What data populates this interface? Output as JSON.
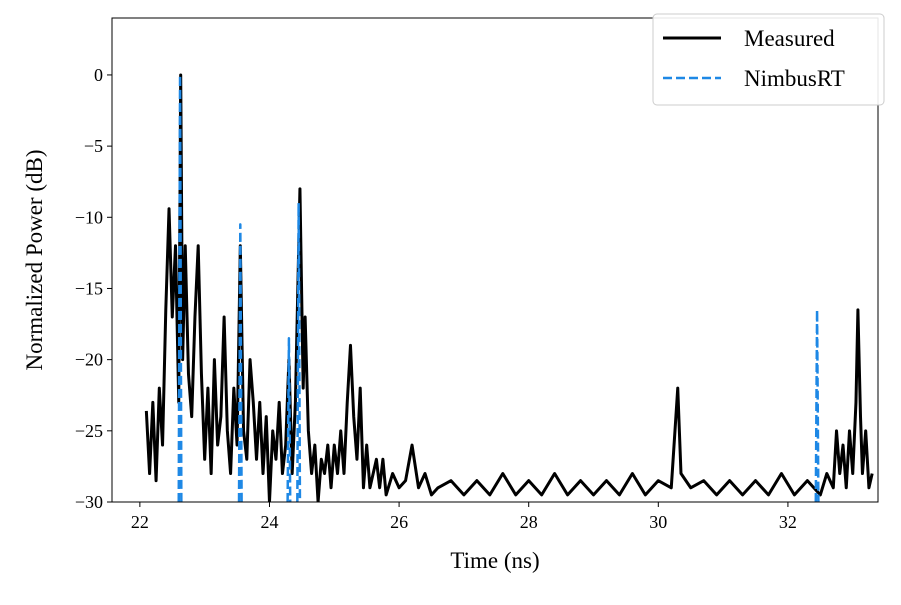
{
  "chart_data": {
    "type": "line",
    "xlabel": "Time (ns)",
    "ylabel": "Normalized Power (dB)",
    "xlim": [
      21.57,
      33.39
    ],
    "ylim": [
      -30,
      4
    ],
    "xticks": [
      22,
      24,
      26,
      28,
      30,
      32
    ],
    "yticks": [
      0,
      {
        "value": -5,
        "label": "−5"
      },
      {
        "value": -10,
        "label": "−10"
      },
      {
        "value": -15,
        "label": "−15"
      },
      {
        "value": -20,
        "label": "−20"
      },
      {
        "value": -25,
        "label": "−25"
      },
      {
        "value": -30,
        "label": "−30"
      }
    ],
    "legend": "upper right",
    "series": [
      {
        "name": "Measured",
        "color": "#000000",
        "style": "solid",
        "x": [
          22.1,
          22.15,
          22.2,
          22.25,
          22.3,
          22.35,
          22.4,
          22.45,
          22.5,
          22.55,
          22.6,
          22.63,
          22.66,
          22.7,
          22.75,
          22.8,
          22.85,
          22.9,
          22.95,
          23.0,
          23.05,
          23.1,
          23.15,
          23.2,
          23.25,
          23.3,
          23.35,
          23.4,
          23.45,
          23.5,
          23.55,
          23.6,
          23.65,
          23.7,
          23.75,
          23.8,
          23.85,
          23.9,
          23.95,
          24.0,
          24.05,
          24.1,
          24.15,
          24.2,
          24.25,
          24.3,
          24.35,
          24.4,
          24.47,
          24.52,
          24.55,
          24.6,
          24.65,
          24.7,
          24.75,
          24.8,
          24.85,
          24.9,
          24.95,
          25.0,
          25.05,
          25.1,
          25.15,
          25.2,
          25.25,
          25.3,
          25.35,
          25.4,
          25.45,
          25.5,
          25.55,
          25.6,
          25.65,
          25.7,
          25.75,
          25.8,
          25.9,
          26.0,
          26.1,
          26.2,
          26.3,
          26.4,
          26.5,
          26.6,
          26.8,
          27.0,
          27.2,
          27.4,
          27.6,
          27.8,
          28.0,
          28.2,
          28.4,
          28.6,
          28.8,
          29.0,
          29.2,
          29.4,
          29.6,
          29.8,
          30.0,
          30.2,
          30.3,
          30.35,
          30.5,
          30.7,
          30.9,
          31.1,
          31.3,
          31.5,
          31.7,
          31.9,
          32.1,
          32.3,
          32.5,
          32.6,
          32.7,
          32.75,
          32.8,
          32.85,
          32.9,
          32.95,
          33.0,
          33.05,
          33.08,
          33.12,
          33.15,
          33.2,
          33.25,
          33.3
        ],
        "values": [
          -23.6,
          -28,
          -23,
          -28.5,
          -22,
          -26,
          -16.5,
          -9.4,
          -17,
          -12,
          -23,
          0,
          -20,
          -12,
          -21,
          -24,
          -17,
          -12,
          -21,
          -27,
          -22,
          -28,
          -20,
          -26,
          -24,
          -17,
          -25,
          -28,
          -22,
          -26,
          -12,
          -25,
          -27,
          -20,
          -23,
          -27,
          -23,
          -28,
          -24,
          -30,
          -25,
          -27,
          -23,
          -28,
          -26,
          -20,
          -28,
          -23,
          -8,
          -22,
          -17,
          -25,
          -28,
          -26,
          -30,
          -27,
          -28,
          -26,
          -29,
          -26,
          -28,
          -25,
          -28,
          -23,
          -19,
          -24,
          -27,
          -22,
          -29,
          -26,
          -29,
          -28,
          -27,
          -29,
          -27,
          -29.5,
          -28,
          -29,
          -28.5,
          -26,
          -29,
          -28,
          -29.5,
          -29,
          -28.5,
          -29.5,
          -28.5,
          -29.5,
          -28,
          -29.5,
          -28.5,
          -29.5,
          -28,
          -29.5,
          -28.5,
          -29.5,
          -28.5,
          -29.5,
          -28,
          -29.5,
          -28.5,
          -29,
          -22,
          -28,
          -29,
          -28.5,
          -29.5,
          -28.5,
          -29.5,
          -28.5,
          -29.5,
          -28,
          -29.5,
          -28.5,
          -29.5,
          -28,
          -29,
          -25,
          -28,
          -26,
          -29,
          -25,
          -28,
          -23,
          -16.5,
          -24,
          -28,
          -25,
          -29,
          -28
        ]
      },
      {
        "name": "NimbusRT",
        "color": "#1e88e5",
        "style": "dashed",
        "x": [
          22.6,
          22.62,
          22.64,
          null,
          23.53,
          23.55,
          23.57,
          null,
          24.28,
          24.3,
          24.32,
          null,
          24.43,
          24.45,
          24.47,
          null,
          32.43,
          32.45,
          32.47
        ],
        "values": [
          -30,
          0,
          -30,
          null,
          -30,
          -10.5,
          -30,
          null,
          -30,
          -18.5,
          -30,
          null,
          -30,
          -9,
          -30,
          null,
          -30,
          -16.5,
          -30
        ]
      }
    ]
  }
}
